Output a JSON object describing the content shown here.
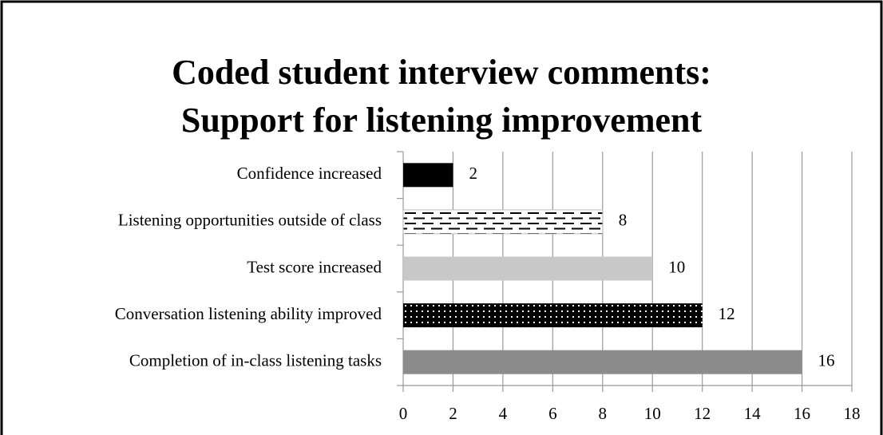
{
  "chart_data": {
    "type": "barh",
    "title": [
      "Coded student interview comments:",
      "Support for listening improvement"
    ],
    "categories": [
      "Confidence increased",
      "Listening opportunities outside of class",
      "Test score increased",
      "Conversation listening ability improved",
      "Completion of in-class listening tasks"
    ],
    "values": [
      2,
      8,
      10,
      12,
      16
    ],
    "colors": [
      "#000000",
      "#ffffff",
      "#c8c8c8",
      "#000000",
      "#8c8c8c"
    ],
    "patterns": [
      null,
      "dashes",
      null,
      "dots",
      null
    ],
    "xlim": [
      0,
      18
    ],
    "xticks": [
      0,
      2,
      4,
      6,
      8,
      10,
      12,
      14,
      16,
      18
    ],
    "grid": true
  }
}
